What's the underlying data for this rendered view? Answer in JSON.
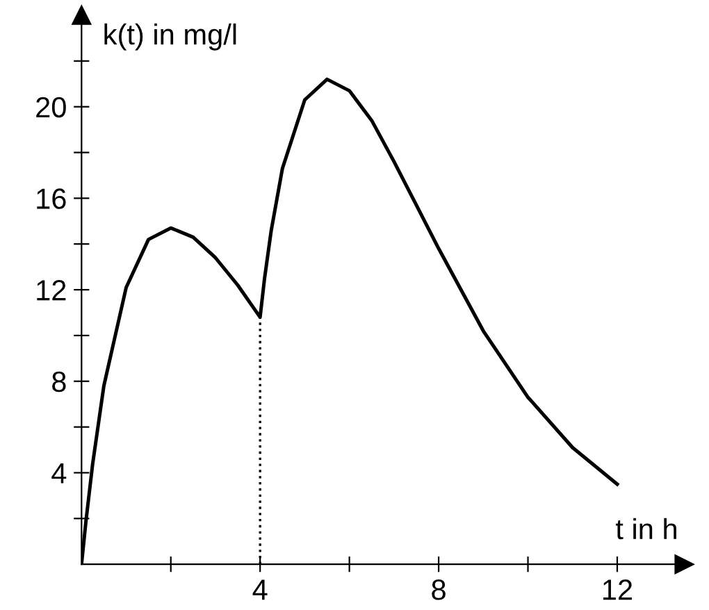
{
  "chart_data": {
    "type": "line",
    "xlabel": "t in h",
    "ylabel": "k(t) in mg/l",
    "series": [
      {
        "color": "#000000",
        "line_style": "solid",
        "x": [
          0,
          0.1,
          0.25,
          0.5,
          1,
          1.5,
          2,
          2.5,
          3,
          3.5,
          4,
          4.1,
          4.25,
          4.5,
          5,
          5.5,
          6,
          6.5,
          7,
          7.5,
          8,
          9,
          10,
          11,
          12
        ],
        "values": [
          0,
          1.9,
          4.4,
          7.8,
          12.1,
          14.2,
          14.7,
          14.3,
          13.4,
          12.2,
          10.8,
          12.5,
          14.6,
          17.3,
          20.3,
          21.2,
          20.7,
          19.4,
          17.6,
          15.7,
          13.8,
          10.2,
          7.3,
          5.1,
          3.5
        ]
      },
      {
        "color": "#000000",
        "line_style": "dotted",
        "x": [
          4,
          4
        ],
        "values": [
          0,
          10.8
        ]
      }
    ],
    "xlim": [
      0,
      13.5
    ],
    "ylim": [
      0,
      24
    ],
    "xticks": [
      {
        "value": 2,
        "label": null
      },
      4,
      {
        "value": 6,
        "label": null
      },
      8,
      {
        "value": 10,
        "label": null
      },
      12
    ],
    "yticks": [
      {
        "value": 2,
        "label": null
      },
      4,
      {
        "value": 6,
        "label": null
      },
      8,
      {
        "value": 10,
        "label": null
      },
      12,
      {
        "value": 14,
        "label": null
      },
      16,
      {
        "value": 18,
        "label": null
      },
      20,
      {
        "value": 22,
        "label": null
      }
    ],
    "grid": false,
    "legend": false,
    "marker": "none"
  }
}
